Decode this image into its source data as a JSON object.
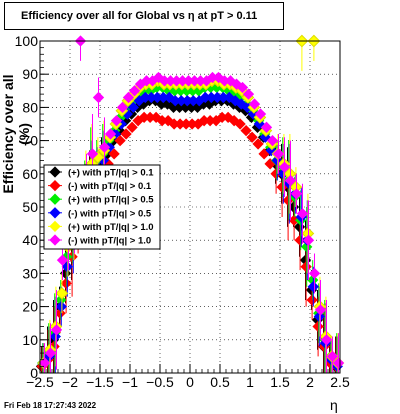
{
  "title": "Efficiency over all for Global vs   η at pT > 0.11",
  "footer": "Fri Feb 18 17:27:43 2022",
  "chart_data": {
    "type": "scatter",
    "title": "Efficiency over all for Global vs   η at pT > 0.11",
    "xlabel": "η",
    "ylabel": "Efficiency over all (%)",
    "xlim": [
      -2.5,
      2.5
    ],
    "ylim": [
      0,
      100
    ],
    "x_ticks": [
      "-2.5",
      "-2",
      "-1.5",
      "-1",
      "-0.5",
      "0",
      "0.5",
      "1",
      "1.5",
      "2",
      "2.5"
    ],
    "y_ticks": [
      "0",
      "10",
      "20",
      "30",
      "40",
      "50",
      "60",
      "70",
      "80",
      "90",
      "100"
    ],
    "grid": true,
    "legend_position": "left-middle",
    "series": [
      {
        "name": "(+) with pT/|q| > 0.1",
        "color": "#000000",
        "x": [
          -2.45,
          -2.35,
          -2.25,
          -2.15,
          -2.05,
          -1.95,
          -1.85,
          -1.75,
          -1.65,
          -1.55,
          -1.45,
          -1.35,
          -1.25,
          -1.15,
          -1.05,
          -0.95,
          -0.85,
          -0.75,
          -0.65,
          -0.55,
          -0.45,
          -0.35,
          -0.25,
          -0.15,
          -0.05,
          0.05,
          0.15,
          0.25,
          0.35,
          0.45,
          0.55,
          0.65,
          0.75,
          0.85,
          0.95,
          1.05,
          1.15,
          1.25,
          1.35,
          1.45,
          1.55,
          1.65,
          1.75,
          1.85,
          1.95,
          2.05,
          2.15,
          2.25,
          2.35,
          2.45
        ],
        "y": [
          2,
          5,
          10,
          20,
          30,
          40,
          44,
          48,
          55,
          60,
          62,
          66,
          70,
          73,
          76,
          78,
          80,
          81,
          82,
          82,
          81,
          81,
          80,
          80,
          80,
          80,
          80,
          81,
          81,
          82,
          82,
          82,
          81,
          80,
          79,
          77,
          74,
          71,
          67,
          63,
          60,
          56,
          50,
          44,
          34,
          25,
          16,
          8,
          4,
          2
        ]
      },
      {
        "name": "(-) with pT/|q| > 0.1",
        "color": "#ff0000",
        "x": [
          -2.45,
          -2.35,
          -2.25,
          -2.15,
          -2.05,
          -1.95,
          -1.85,
          -1.75,
          -1.65,
          -1.55,
          -1.45,
          -1.35,
          -1.25,
          -1.15,
          -1.05,
          -0.95,
          -0.85,
          -0.75,
          -0.65,
          -0.55,
          -0.45,
          -0.35,
          -0.25,
          -0.15,
          -0.05,
          0.05,
          0.15,
          0.25,
          0.35,
          0.45,
          0.55,
          0.65,
          0.75,
          0.85,
          0.95,
          1.05,
          1.15,
          1.25,
          1.35,
          1.45,
          1.55,
          1.65,
          1.75,
          1.85,
          1.95,
          2.05,
          2.15,
          2.25,
          2.35,
          2.45
        ],
        "y": [
          2,
          4,
          8,
          18,
          27,
          35,
          42,
          48,
          53,
          57,
          60,
          63,
          66,
          70,
          72,
          74,
          76,
          77,
          77,
          77,
          76,
          76,
          75,
          75,
          75,
          75,
          75,
          76,
          76,
          76,
          77,
          77,
          76,
          75,
          73,
          71,
          69,
          66,
          63,
          60,
          56,
          52,
          46,
          40,
          32,
          22,
          14,
          8,
          3,
          2
        ]
      },
      {
        "name": "(+) with pT/|q| > 0.5",
        "color": "#00ee00",
        "x": [
          -2.45,
          -2.35,
          -2.25,
          -2.15,
          -2.05,
          -1.95,
          -1.85,
          -1.75,
          -1.65,
          -1.55,
          -1.45,
          -1.35,
          -1.25,
          -1.15,
          -1.05,
          -0.95,
          -0.85,
          -0.75,
          -0.65,
          -0.55,
          -0.45,
          -0.35,
          -0.25,
          -0.15,
          -0.05,
          0.05,
          0.15,
          0.25,
          0.35,
          0.45,
          0.55,
          0.65,
          0.75,
          0.85,
          0.95,
          1.05,
          1.15,
          1.25,
          1.35,
          1.45,
          1.55,
          1.65,
          1.75,
          1.85,
          1.95,
          2.05,
          2.15,
          2.25,
          2.35,
          2.45
        ],
        "y": [
          3,
          6,
          12,
          22,
          35,
          45,
          50,
          55,
          62,
          64,
          66,
          70,
          73,
          77,
          80,
          82,
          84,
          85,
          85,
          86,
          86,
          85,
          85,
          85,
          85,
          85,
          85,
          86,
          86,
          86,
          86,
          85,
          84,
          83,
          81,
          79,
          76,
          72,
          68,
          64,
          62,
          58,
          53,
          46,
          38,
          28,
          18,
          10,
          5,
          3
        ]
      },
      {
        "name": "(-) with pT/|q| > 0.5",
        "color": "#0000ff",
        "x": [
          -2.45,
          -2.35,
          -2.25,
          -2.15,
          -2.05,
          -1.95,
          -1.85,
          -1.75,
          -1.65,
          -1.55,
          -1.45,
          -1.35,
          -1.25,
          -1.15,
          -1.05,
          -0.95,
          -0.85,
          -0.75,
          -0.65,
          -0.55,
          -0.45,
          -0.35,
          -0.25,
          -0.15,
          -0.05,
          0.05,
          0.15,
          0.25,
          0.35,
          0.45,
          0.55,
          0.65,
          0.75,
          0.85,
          0.95,
          1.05,
          1.15,
          1.25,
          1.35,
          1.45,
          1.55,
          1.65,
          1.75,
          1.85,
          1.95,
          2.05,
          2.15,
          2.25,
          2.35,
          2.45
        ],
        "y": [
          3,
          5,
          11,
          20,
          32,
          42,
          48,
          54,
          58,
          62,
          64,
          68,
          72,
          75,
          78,
          80,
          82,
          83,
          83,
          83,
          83,
          83,
          82,
          82,
          82,
          82,
          82,
          83,
          83,
          83,
          83,
          83,
          82,
          81,
          80,
          78,
          75,
          71,
          67,
          64,
          60,
          57,
          54,
          47,
          40,
          26,
          17,
          9,
          4,
          2
        ]
      },
      {
        "name": "(+) with pT/|q| > 1.0",
        "color": "#ffff00",
        "x": [
          -2.45,
          -2.35,
          -2.25,
          -2.15,
          -2.05,
          -1.95,
          -1.85,
          -1.75,
          -1.65,
          -1.55,
          -1.45,
          -1.35,
          -1.25,
          -1.15,
          -1.05,
          -0.95,
          -0.85,
          -0.75,
          -0.65,
          -0.55,
          -0.45,
          -0.35,
          -0.25,
          -0.15,
          -0.05,
          0.05,
          0.15,
          0.25,
          0.35,
          0.45,
          0.55,
          0.65,
          0.75,
          0.85,
          0.95,
          1.05,
          1.15,
          1.25,
          1.35,
          1.45,
          1.55,
          1.65,
          1.75,
          1.85,
          1.95,
          2.05,
          2.15,
          2.25,
          2.35,
          2.45
        ],
        "y": [
          3,
          7,
          14,
          24,
          38,
          46,
          52,
          58,
          63,
          65,
          67,
          71,
          75,
          79,
          82,
          84,
          86,
          87,
          87,
          88,
          87,
          87,
          87,
          87,
          87,
          87,
          87,
          87,
          88,
          88,
          87,
          87,
          86,
          85,
          83,
          80,
          77,
          73,
          69,
          66,
          63,
          60,
          56,
          100,
          42,
          100,
          20,
          11,
          5,
          3
        ]
      },
      {
        "name": "(-) with pT/|q| > 1.0",
        "color": "#ff00ff",
        "x": [
          -2.45,
          -2.35,
          -2.25,
          -2.15,
          -2.05,
          -1.95,
          -1.85,
          -1.75,
          -1.65,
          -1.55,
          -1.45,
          -1.35,
          -1.25,
          -1.15,
          -1.05,
          -0.95,
          -0.85,
          -0.75,
          -0.65,
          -0.55,
          -0.45,
          -0.35,
          -0.25,
          -0.15,
          -0.05,
          0.05,
          0.15,
          0.25,
          0.35,
          0.45,
          0.55,
          0.65,
          0.75,
          0.85,
          0.95,
          1.05,
          1.15,
          1.25,
          1.35,
          1.45,
          1.55,
          1.65,
          1.75,
          1.85,
          1.95,
          2.05,
          2.15,
          2.25,
          2.35,
          2.45
        ],
        "y": [
          3,
          6,
          13,
          34,
          40,
          48,
          100,
          57,
          66,
          83,
          68,
          72,
          76,
          80,
          83,
          85,
          87,
          88,
          88,
          89,
          88,
          88,
          88,
          88,
          88,
          88,
          88,
          88,
          89,
          89,
          88,
          88,
          87,
          86,
          84,
          81,
          78,
          74,
          70,
          66,
          62,
          58,
          54,
          48,
          40,
          30,
          19,
          10,
          5,
          3
        ]
      }
    ]
  }
}
